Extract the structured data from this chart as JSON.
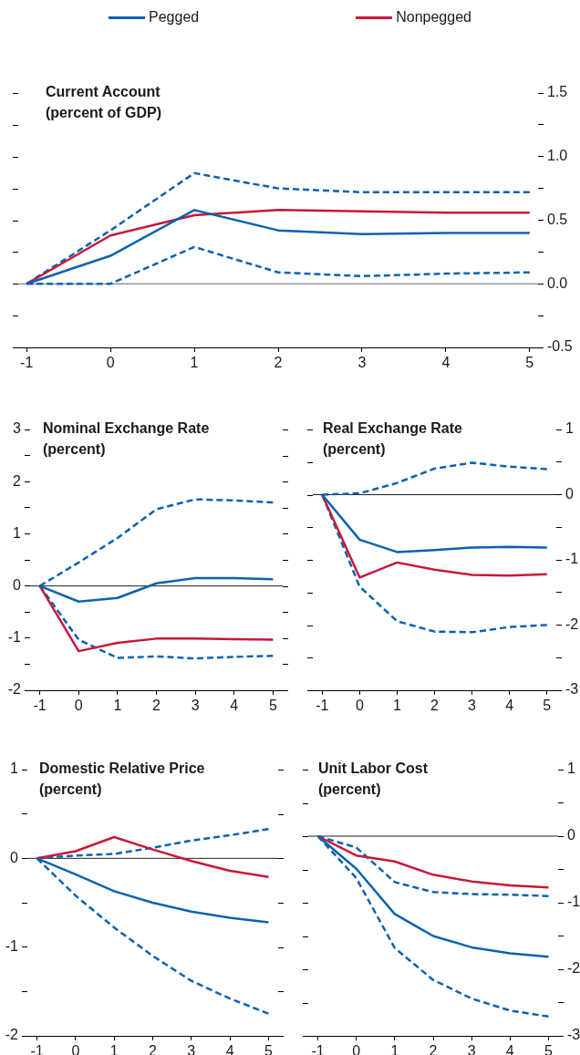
{
  "chart_data": [
    {
      "type": "line",
      "title": "Current Account",
      "subtitle": "(percent of GDP)",
      "legend": "top",
      "x": [
        -1,
        0,
        1,
        2,
        3,
        4,
        5
      ],
      "xlim": [
        -1.1,
        5.1
      ],
      "xticks": [
        -1,
        0,
        1,
        2,
        3,
        4,
        5
      ],
      "y2lim": [
        -0.5,
        1.5
      ],
      "y2ticks": [
        -0.5,
        {
          "value": -0.25,
          "label": null
        },
        {
          "value": 0,
          "label": "0.0"
        },
        {
          "value": 0.25,
          "label": null
        },
        0.5,
        {
          "value": 0.75,
          "label": null
        },
        {
          "value": 1,
          "label": "1.0"
        },
        {
          "value": 1.25,
          "label": null
        },
        1.5
      ],
      "series": [
        {
          "name": "Pegged",
          "color": "#0b62b0",
          "axis": "y2",
          "values": [
            0,
            0.22,
            0.58,
            0.42,
            0.39,
            0.4,
            0.4
          ]
        },
        {
          "name": "Nonpegged",
          "color": "#c8173b",
          "axis": "y2",
          "values": [
            0,
            0.38,
            0.54,
            0.58,
            0.57,
            0.56,
            0.56
          ]
        },
        {
          "color": "#0b62b0",
          "axis": "y2",
          "line_style": "dashed",
          "values": [
            0,
            0.42,
            0.87,
            0.75,
            0.72,
            0.72,
            0.72
          ]
        },
        {
          "color": "#0b62b0",
          "axis": "y2",
          "line_style": "dashed",
          "values": [
            0,
            0,
            0.29,
            0.09,
            0.06,
            0.08,
            0.09
          ]
        }
      ],
      "ref_lines": [
        {
          "axis": "y2",
          "value": 0,
          "color": "#666666"
        }
      ]
    },
    {
      "type": "line",
      "title": "Nominal Exchange Rate",
      "subtitle": "(percent)",
      "x": [
        -1,
        0,
        1,
        2,
        3,
        4,
        5
      ],
      "xlim": [
        -1.25,
        5.25
      ],
      "xticks": [
        -1,
        0,
        1,
        2,
        3,
        4,
        5
      ],
      "ylim": [
        -2,
        3
      ],
      "yticks": [
        -2,
        {
          "value": -1.5,
          "label": null
        },
        -1,
        {
          "value": -0.5,
          "label": null
        },
        0,
        {
          "value": 0.5,
          "label": null
        },
        1,
        {
          "value": 1.5,
          "label": null
        },
        2,
        {
          "value": 2.5,
          "label": null
        },
        3
      ],
      "series": [
        {
          "color": "#0b62b0",
          "values": [
            0,
            -0.3,
            -0.23,
            0.05,
            0.15,
            0.15,
            0.13
          ]
        },
        {
          "color": "#c8173b",
          "values": [
            0,
            -1.25,
            -1.09,
            -1.01,
            -1.01,
            -1.02,
            -1.03
          ]
        },
        {
          "color": "#0b62b0",
          "line_style": "dashed",
          "values": [
            0,
            0.45,
            0.92,
            1.47,
            1.66,
            1.64,
            1.6
          ]
        },
        {
          "color": "#0b62b0",
          "line_style": "dashed",
          "values": [
            0,
            -1.03,
            -1.38,
            -1.35,
            -1.39,
            -1.36,
            -1.34
          ]
        }
      ],
      "ref_lines": [
        {
          "axis": "y",
          "value": 0,
          "color": "#222222"
        }
      ]
    },
    {
      "type": "line",
      "title": "Real Exchange Rate",
      "subtitle": "(percent)",
      "x": [
        -1,
        0,
        1,
        2,
        3,
        4,
        5
      ],
      "xlim": [
        -1.25,
        5.25
      ],
      "xticks": [
        -1,
        0,
        1,
        2,
        3,
        4,
        5
      ],
      "y2lim": [
        -3,
        1
      ],
      "y2ticks": [
        -3,
        {
          "value": -2.5,
          "label": null
        },
        -2,
        {
          "value": -1.5,
          "label": null
        },
        -1,
        {
          "value": -0.5,
          "label": null
        },
        0,
        {
          "value": 0.5,
          "label": null
        },
        1
      ],
      "series": [
        {
          "color": "#0b62b0",
          "axis": "y2",
          "values": [
            0,
            -0.69,
            -0.88,
            -0.85,
            -0.81,
            -0.8,
            -0.81
          ]
        },
        {
          "color": "#c8173b",
          "axis": "y2",
          "values": [
            0,
            -1.27,
            -1.04,
            -1.15,
            -1.23,
            -1.24,
            -1.22
          ]
        },
        {
          "color": "#0b62b0",
          "axis": "y2",
          "line_style": "dashed",
          "values": [
            0,
            0.02,
            0.18,
            0.4,
            0.49,
            0.43,
            0.39
          ]
        },
        {
          "color": "#0b62b0",
          "axis": "y2",
          "line_style": "dashed",
          "values": [
            0,
            -1.41,
            -1.94,
            -2.1,
            -2.11,
            -2.03,
            -2
          ]
        }
      ],
      "ref_lines": [
        {
          "axis": "y2",
          "value": 0,
          "color": "#222222"
        }
      ]
    },
    {
      "type": "line",
      "title": "Domestic Relative Price",
      "subtitle": "(percent)",
      "x": [
        -1,
        0,
        1,
        2,
        3,
        4,
        5
      ],
      "xlim": [
        -1.25,
        5.25
      ],
      "xticks": [
        -1,
        0,
        1,
        2,
        3,
        4,
        5
      ],
      "ylim": [
        -2,
        1
      ],
      "yticks": [
        -2,
        {
          "value": -1.5,
          "label": null
        },
        -1,
        {
          "value": -0.5,
          "label": null
        },
        0,
        {
          "value": 0.5,
          "label": null
        },
        1
      ],
      "series": [
        {
          "color": "#0b62b0",
          "values": [
            0,
            -0.18,
            -0.37,
            -0.5,
            -0.6,
            -0.67,
            -0.72
          ]
        },
        {
          "color": "#c8173b",
          "values": [
            0,
            0.08,
            0.24,
            0.1,
            -0.03,
            -0.14,
            -0.21
          ]
        },
        {
          "color": "#0b62b0",
          "line_style": "dashed",
          "values": [
            0,
            0.03,
            0.05,
            0.12,
            0.2,
            0.26,
            0.33
          ]
        },
        {
          "color": "#0b62b0",
          "line_style": "dashed",
          "values": [
            0,
            -0.42,
            -0.78,
            -1.1,
            -1.38,
            -1.58,
            -1.75
          ]
        }
      ],
      "ref_lines": [
        {
          "axis": "y",
          "value": 0,
          "color": "#222222"
        }
      ]
    },
    {
      "type": "line",
      "title": "Unit Labor Cost",
      "subtitle": "(percent)",
      "x": [
        -1,
        0,
        1,
        2,
        3,
        4,
        5
      ],
      "xlim": [
        -1.25,
        5.25
      ],
      "xticks": [
        -1,
        0,
        1,
        2,
        3,
        4,
        5
      ],
      "y2lim": [
        -3,
        1
      ],
      "y2ticks": [
        -3,
        {
          "value": -2.5,
          "label": null
        },
        -2,
        {
          "value": -1.5,
          "label": null
        },
        -1,
        {
          "value": -0.5,
          "label": null
        },
        0,
        {
          "value": 0.5,
          "label": null
        },
        1
      ],
      "series": [
        {
          "color": "#0b62b0",
          "axis": "y2",
          "values": [
            0,
            -0.49,
            -1.17,
            -1.5,
            -1.67,
            -1.76,
            -1.81
          ]
        },
        {
          "color": "#c8173b",
          "axis": "y2",
          "values": [
            0,
            -0.29,
            -0.38,
            -0.58,
            -0.68,
            -0.74,
            -0.77
          ]
        },
        {
          "color": "#0b62b0",
          "axis": "y2",
          "line_style": "dashed",
          "values": [
            0,
            -0.17,
            -0.69,
            -0.84,
            -0.87,
            -0.88,
            -0.9
          ]
        },
        {
          "color": "#0b62b0",
          "axis": "y2",
          "line_style": "dashed",
          "values": [
            0,
            -0.63,
            -1.68,
            -2.16,
            -2.44,
            -2.62,
            -2.71
          ]
        }
      ],
      "ref_lines": [
        {
          "axis": "y2",
          "value": 0,
          "color": "#222222"
        }
      ]
    }
  ]
}
